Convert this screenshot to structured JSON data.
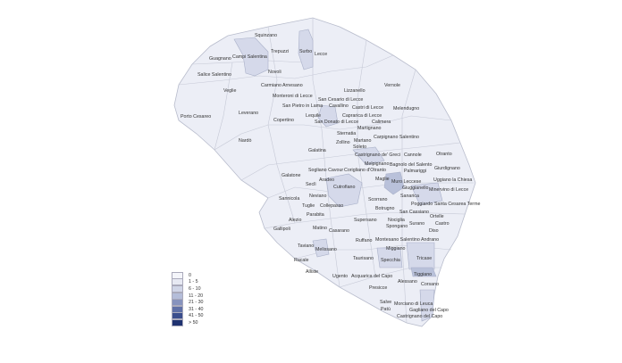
{
  "map": {
    "municipalities": [
      "Squinzano",
      "Trepuzzi",
      "Surbo",
      "Lecce",
      "Guagnano",
      "Campi Salentina",
      "Novoli",
      "Salice Salentino",
      "Carmiano",
      "Arnesano",
      "Veglie",
      "Vernole",
      "Monteroni di Lecce",
      "Lizzanello",
      "San Cesario di Lecce",
      "Cavallino",
      "San Pietro in Lama",
      "Leverano",
      "Castri di Lecce",
      "Porto Cesareo",
      "Lequile",
      "Caprarica di Lecce",
      "San Donato di Lecce",
      "Copertino",
      "Calimera",
      "Martignano",
      "Melendugno",
      "Sternatia",
      "Carpignano Salentino",
      "Nardò",
      "Zollino",
      "Martano",
      "Soleto",
      "Galatina",
      "Castrignano de' Greci",
      "Cannole",
      "Otranto",
      "Corigliano d'Otranto",
      "Melpignano",
      "Bagnolo del Salento",
      "Sogliano Cavour",
      "Palmariggi",
      "Giurdignano",
      "Galatone",
      "Aradeo",
      "Seclì",
      "Maglie",
      "Muro Leccese",
      "Giuggianello",
      "Uggiano la Chiesa",
      "Cutrofiano",
      "Minervino di Lecce",
      "Sanarica",
      "Neviano",
      "Sannicola",
      "Scorrano",
      "Poggiardo",
      "Santa Cesarea Terme",
      "Collepasso",
      "Tuglie",
      "Botrugno",
      "San Cassiano",
      "Parabita",
      "Ortelle",
      "Alezio",
      "Supersano",
      "Nociglia",
      "Surano",
      "Spongano",
      "Castro",
      "Gallipoli",
      "Matino",
      "Casarano",
      "Diso",
      "Ruffano",
      "Montesano Salentino",
      "Andrano",
      "Miggiano",
      "Taviano",
      "Melissano",
      "Specchia",
      "Tricase",
      "Taurisano",
      "Racale",
      "Alliste",
      "Ugento",
      "Acquarica del Capo",
      "Alessano",
      "Tiggiano",
      "Corsano",
      "Presicce",
      "Salve",
      "Morciano di Leuca",
      "Gagliano del Capo",
      "Patù",
      "Castrignano del Capo"
    ]
  },
  "legend": {
    "classes": [
      {
        "label": "0",
        "color": "#f4f5fa"
      },
      {
        "label": "1 - 5",
        "color": "#e7e9f3"
      },
      {
        "label": "6 - 10",
        "color": "#d0d5e7"
      },
      {
        "label": "11 - 20",
        "color": "#b4bdd9"
      },
      {
        "label": "21 - 30",
        "color": "#8793be"
      },
      {
        "label": "31 - 40",
        "color": "#5f70a7"
      },
      {
        "label": "41 - 50",
        "color": "#3b4e8d"
      },
      {
        "label": "> 50",
        "color": "#1f3270"
      }
    ]
  },
  "colors": {
    "border": "#b8bccc",
    "base": "#eceef6",
    "shade1": "#d5d9ea",
    "shade2": "#b9c1da"
  }
}
